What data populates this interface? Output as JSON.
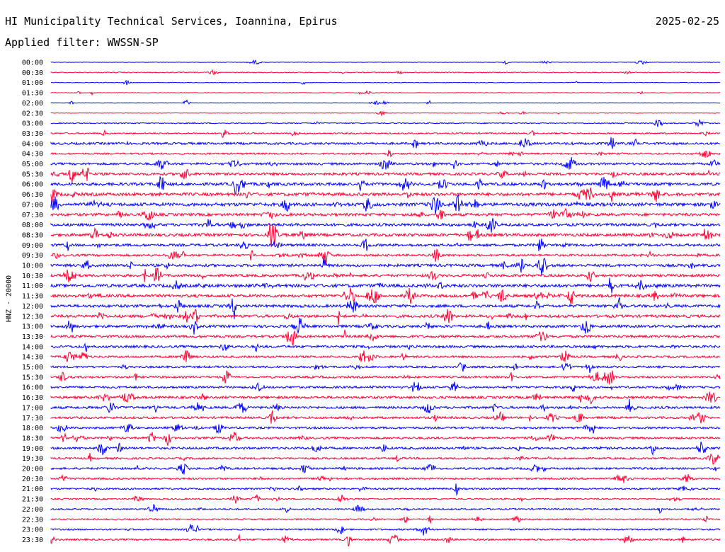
{
  "header": {
    "title": "HI Municipality Technical Services, Ioannina, Epirus",
    "date": "2025-02-25",
    "filter": "Applied filter: WWSSN-SP"
  },
  "chart_data": {
    "type": "line",
    "title": "HI Municipality Technical Services, Ioannina, Epirus",
    "subtitle": "Applied filter: WWSSN-SP",
    "ylabel": "HNZ - 20000",
    "grid": false,
    "trace_colors": [
      "#0000ff",
      "#ff0033"
    ],
    "categories": [
      "00:00",
      "00:30",
      "01:00",
      "01:30",
      "02:00",
      "02:30",
      "03:00",
      "03:30",
      "04:00",
      "04:30",
      "05:00",
      "05:30",
      "06:00",
      "06:30",
      "07:00",
      "07:30",
      "08:00",
      "08:30",
      "09:00",
      "09:30",
      "10:00",
      "10:30",
      "11:00",
      "11:30",
      "12:00",
      "12:30",
      "13:00",
      "13:30",
      "14:00",
      "14:30",
      "15:00",
      "15:30",
      "16:00",
      "16:30",
      "17:00",
      "17:30",
      "18:00",
      "18:30",
      "19:00",
      "19:30",
      "20:00",
      "20:30",
      "21:00",
      "21:30",
      "22:00",
      "22:30",
      "23:00",
      "23:30"
    ],
    "noise_level": [
      0.25,
      0.5,
      0.35,
      0.3,
      0.3,
      0.3,
      0.6,
      0.8,
      1.3,
      1.0,
      1.3,
      1.5,
      1.7,
      1.8,
      1.9,
      1.6,
      1.6,
      1.7,
      1.5,
      1.3,
      1.6,
      1.5,
      1.8,
      1.7,
      1.6,
      1.6,
      1.5,
      1.4,
      1.4,
      1.2,
      1.2,
      1.2,
      1.2,
      1.4,
      1.4,
      1.3,
      1.2,
      1.2,
      1.3,
      1.1,
      1.2,
      1.1,
      1.0,
      0.8,
      0.9,
      0.8,
      0.9,
      1.0
    ]
  }
}
